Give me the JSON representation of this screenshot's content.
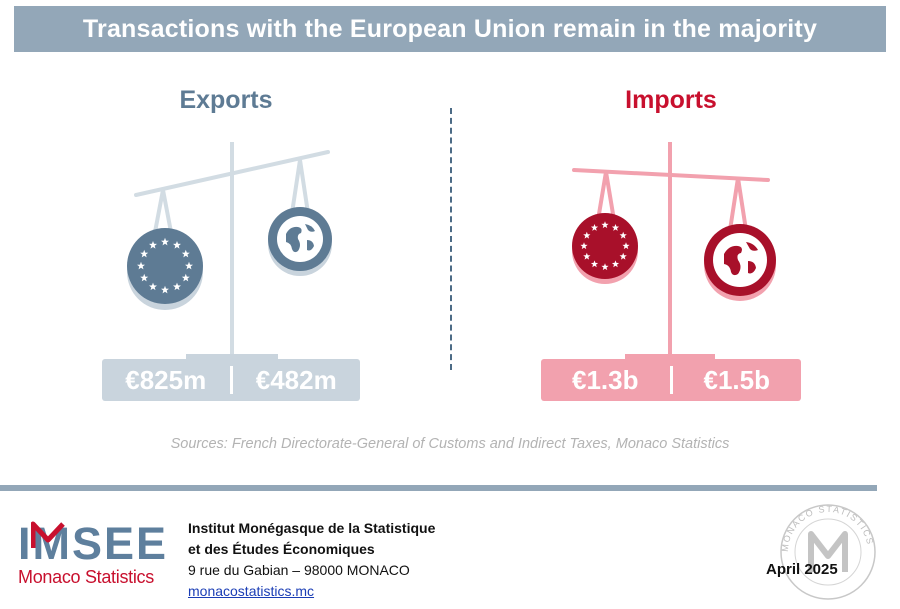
{
  "header": {
    "title": "Transactions with the European Union remain in the majority"
  },
  "exports": {
    "title": "Exports",
    "eu_value": "€825m",
    "world_value": "€482m",
    "color": "#5e7b94",
    "tilt": "EU side heavier"
  },
  "imports": {
    "title": "Imports",
    "eu_value": "€1.3b",
    "world_value": "€1.5b",
    "color": "#c8102e",
    "tilt": "World side heavier"
  },
  "icons": [
    "eu-flag-icon",
    "globe-icon",
    "balance-scale-icon"
  ],
  "sources": "Sources: French Directorate-General of Customs and Indirect Taxes, Monaco Statistics",
  "footer": {
    "logo_text": "IMSEE",
    "logo_subtitle": "Monaco Statistics",
    "org_line1": "Institut Monégasque de la Statistique",
    "org_line2": "et des Études Économiques",
    "address": "9 rue du Gabian – 98000 MONACO",
    "website": "monacostatistics.mc",
    "date": "April 2025",
    "stamp_text": "MONACO STATISTICS"
  },
  "colors": {
    "header_bar": "#93a7b8",
    "export_blue": "#5e7b94",
    "import_red": "#c8102e"
  }
}
